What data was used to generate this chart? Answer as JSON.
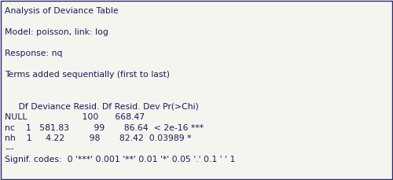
{
  "bg_color": "#f5f5f0",
  "border_color": "#2b2b6b",
  "text_color": "#1a1a5e",
  "font_family": "Courier New",
  "font_size": 7.8,
  "lines": [
    "Analysis of Deviance Table",
    "",
    "Model: poisson, link: log",
    "",
    "Response: nq",
    "",
    "Terms added sequentially (first to last)",
    "",
    "",
    "     Df Deviance Resid. Df Resid. Dev Pr(>Chi)      ",
    "NULL                    100      668.47              ",
    "nc    1   581.83         99       86.64  < 2e-16 ***",
    "nh    1     4.22         98       82.42  0.03989 *  ",
    "---",
    "Signif. codes:  0 '***' 0.001 '**' 0.01 '*' 0.05 '.' 0.1 ' ' 1"
  ]
}
